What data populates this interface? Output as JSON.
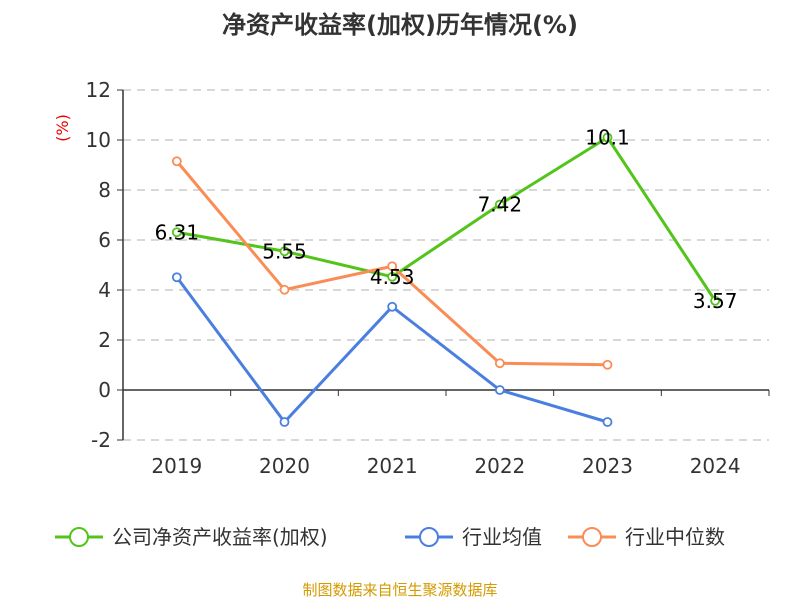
{
  "chart_data": {
    "type": "line",
    "title": "净资产收益率(加权)历年情况(%)",
    "ylabel": "(%)",
    "ylim": [
      -2,
      12
    ],
    "yticks": [
      -2,
      0,
      2,
      4,
      6,
      8,
      10,
      12
    ],
    "grid": true,
    "legend_position": "bottom",
    "categories": [
      "2019",
      "2020",
      "2021",
      "2022",
      "2023",
      "2024"
    ],
    "series": [
      {
        "name": "公司净资产收益率(加权)",
        "color": "#52c41a",
        "values": [
          6.31,
          5.55,
          4.53,
          7.42,
          10.1,
          3.57
        ],
        "labels": [
          "6.31",
          "5.55",
          "4.53",
          "7.42",
          "10.1",
          "3.57"
        ],
        "show_labels": true
      },
      {
        "name": "行业均值",
        "color": "#4a7fe0",
        "values": [
          4.51,
          -1.28,
          3.33,
          0.0,
          -1.28,
          null
        ]
      },
      {
        "name": "行业中位数",
        "color": "#fa8c55",
        "values": [
          9.15,
          4.01,
          4.95,
          1.07,
          1.01,
          null
        ]
      }
    ]
  },
  "source": "制图数据来自恒生聚源数据库"
}
